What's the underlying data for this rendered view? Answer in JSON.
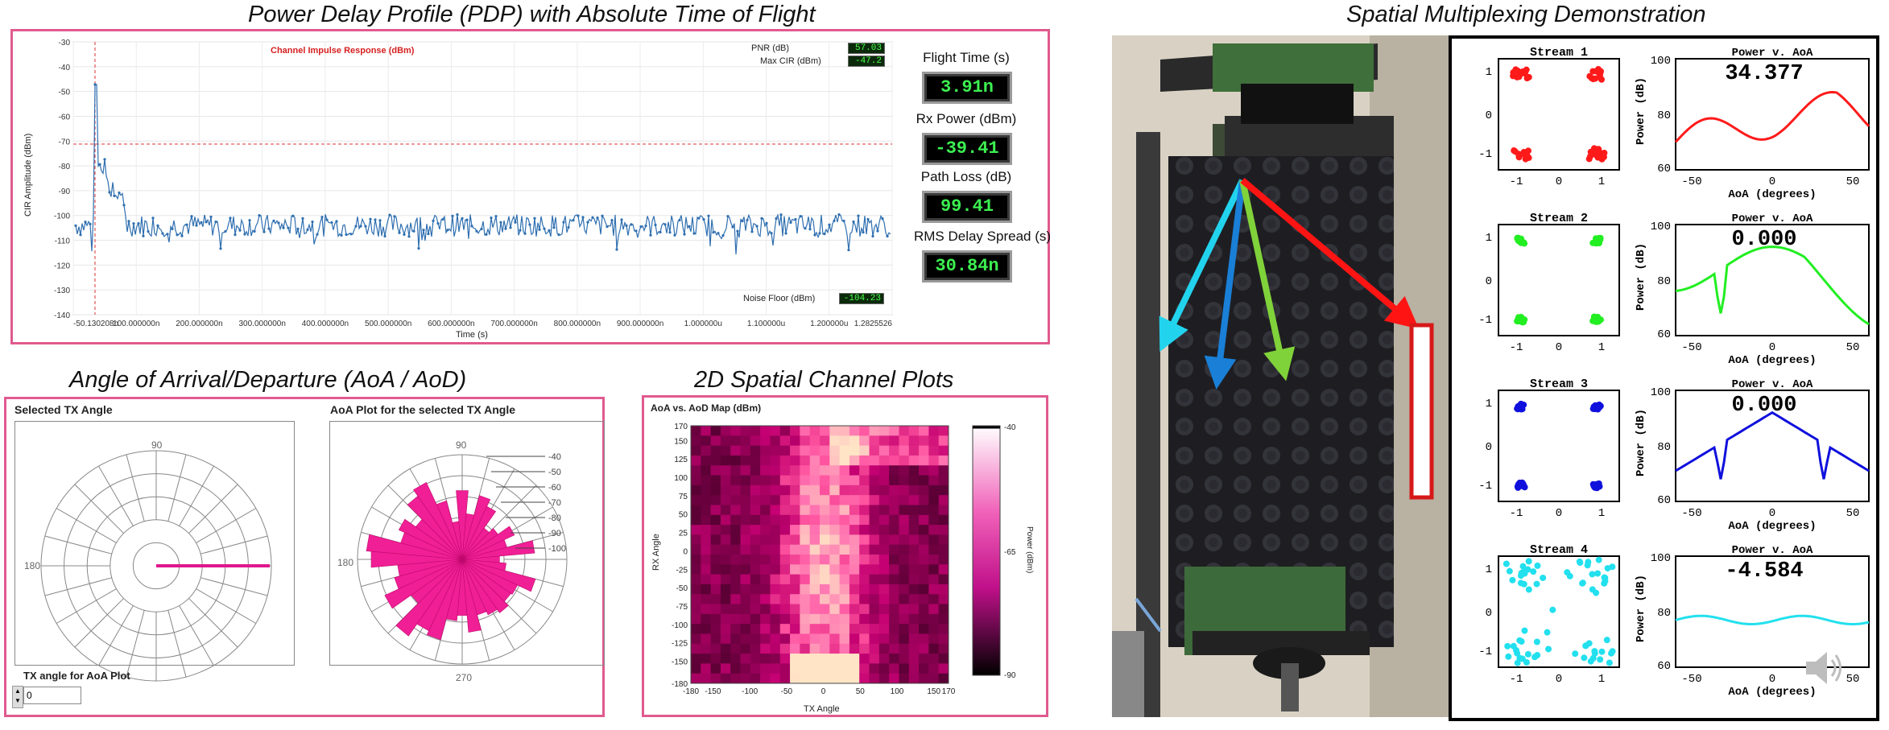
{
  "titles": {
    "pdp": "Power Delay Profile (PDP) with Absolute Time of Flight",
    "aoa": "Angle of Arrival/Departure (AoA / AoD)",
    "spatial": "2D Spatial Channel Plots",
    "mux": "Spatial Multiplexing Demonstration"
  },
  "pdp": {
    "chart_label": "Channel Impulse Response (dBm)",
    "ylabel": "CIR Amplitude (dBm)",
    "xlabel": "Time (s)",
    "pnr_label": "PNR (dB)",
    "pnr_value": "57.03",
    "maxcir_label": "Max CIR (dBm)",
    "maxcir_value": "-47.2",
    "noise_label": "Noise Floor (dBm)",
    "noise_value": "-104.23"
  },
  "meters": [
    {
      "label": "Flight Time (s)",
      "value": "3.91n"
    },
    {
      "label": "Rx Power (dBm)",
      "value": "-39.41"
    },
    {
      "label": "Path Loss (dB)",
      "value": "99.41"
    },
    {
      "label": "RMS Delay Spread (s)",
      "value": "30.84n"
    }
  ],
  "aoa": {
    "tx_title": "Selected TX Angle",
    "aoa_title": "AoA Plot for the selected TX Angle",
    "polar_90": "90",
    "polar_180": "180",
    "polar_270": "270",
    "tx_input_label": "TX angle for AoA Plot",
    "tx_input_value": "0"
  },
  "heatmap": {
    "title": "AoA vs. AoD Map (dBm)",
    "colorbar_label": "Power (dBm)",
    "colorbar_ticks": [
      "-40",
      "-65",
      "-90"
    ]
  },
  "streams": [
    {
      "name": "Stream 1",
      "color": "#ff1a1a",
      "value": "34.377"
    },
    {
      "name": "Stream 2",
      "color": "#22ee22",
      "value": "0.000"
    },
    {
      "name": "Stream 3",
      "color": "#1010dd",
      "value": "0.000"
    },
    {
      "name": "Stream 4",
      "color": "#22e0ee",
      "value": "-4.584"
    }
  ],
  "mux": {
    "power_title": "Power v. AoA",
    "power_ylabel": "Power (dB)",
    "aoa_xlabel": "AoA (degrees)"
  },
  "chart_data": [
    {
      "type": "line",
      "title": "Channel Impulse Response (dBm)",
      "xlabel": "Time (s)",
      "ylabel": "CIR Amplitude (dBm)",
      "ylim": [
        -140,
        -30
      ],
      "yticks": [
        "-30",
        "-40",
        "-50",
        "-60",
        "-70",
        "-80",
        "-90",
        "-100",
        "-110",
        "-120",
        "-130",
        "-140"
      ],
      "xticks": [
        "-50.130208n",
        "100.000000n",
        "200.000000n",
        "300.000000n",
        "400.000000n",
        "500.000000n",
        "600.000000n",
        "700.000000n",
        "800.000000n",
        "900.000000n",
        "1.000000u",
        "1.100000u",
        "1.200000u",
        "1.2825526"
      ],
      "series": [
        {
          "values_summary": "peak -47.2 dBm near 3.9n, noise floor about -104 dBm"
        }
      ]
    },
    {
      "type": "heatmap",
      "title": "AoA vs. AoD Map (dBm)",
      "xlabel": "TX Angle",
      "ylabel": "RX Angle",
      "xticks": [
        "-180",
        "-150",
        "-100",
        "-50",
        "0",
        "50",
        "100",
        "150",
        "170"
      ],
      "yticks": [
        "170",
        "150",
        "125",
        "100",
        "75",
        "50",
        "25",
        "0",
        "-25",
        "-50",
        "-75",
        "-100",
        "-125",
        "-150",
        "-180"
      ],
      "range": [
        -90,
        -40
      ]
    }
  ]
}
